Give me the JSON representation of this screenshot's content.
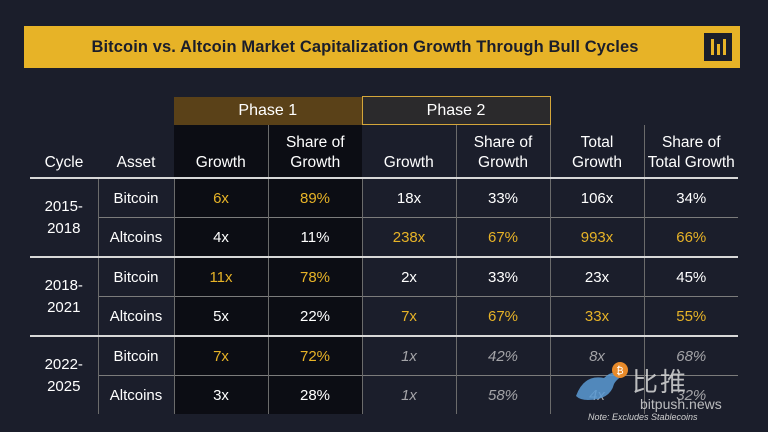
{
  "title": "Bitcoin vs. Altcoin Market Capitalization Growth Through Bull Cycles",
  "logo_icon": "pantera-bars-icon",
  "colors": {
    "accent": "#e7b327",
    "background": "#1b1e2b",
    "muted": "#a4a4a8"
  },
  "headers": {
    "phase1": "Phase 1",
    "phase2": "Phase 2",
    "cycle": "Cycle",
    "asset": "Asset",
    "growth": "Growth",
    "share_of_growth_l1": "Share of",
    "share_of_growth_l2": "Growth",
    "total_growth_l1": "Total",
    "total_growth_l2": "Growth",
    "share_total_l1": "Share of",
    "share_total_l2": "Total Growth"
  },
  "chart_data": {
    "type": "table",
    "title": "Bitcoin vs. Altcoin Market Capitalization Growth Through Bull Cycles",
    "columns": [
      "Cycle",
      "Asset",
      "Phase 1 Growth",
      "Phase 1 Share of Growth",
      "Phase 2 Growth",
      "Phase 2 Share of Growth",
      "Total Growth",
      "Share of Total Growth"
    ],
    "cycles": [
      {
        "cycle_l1": "2015-",
        "cycle_l2": "2018",
        "rows": [
          {
            "asset": "Bitcoin",
            "p1_growth": "6x",
            "p1_share": "89%",
            "p2_growth": "18x",
            "p2_share": "33%",
            "total_growth": "106x",
            "total_share": "34%"
          },
          {
            "asset": "Altcoins",
            "p1_growth": "4x",
            "p1_share": "11%",
            "p2_growth": "238x",
            "p2_share": "67%",
            "total_growth": "993x",
            "total_share": "66%"
          }
        ]
      },
      {
        "cycle_l1": "2018-",
        "cycle_l2": "2021",
        "rows": [
          {
            "asset": "Bitcoin",
            "p1_growth": "11x",
            "p1_share": "78%",
            "p2_growth": "2x",
            "p2_share": "33%",
            "total_growth": "23x",
            "total_share": "45%"
          },
          {
            "asset": "Altcoins",
            "p1_growth": "5x",
            "p1_share": "22%",
            "p2_growth": "7x",
            "p2_share": "67%",
            "total_growth": "33x",
            "total_share": "55%"
          }
        ]
      },
      {
        "cycle_l1": "2022-",
        "cycle_l2": "2025",
        "rows": [
          {
            "asset": "Bitcoin",
            "p1_growth": "7x",
            "p1_share": "72%",
            "p2_growth": "1x",
            "p2_share": "42%",
            "total_growth": "8x",
            "total_share": "68%"
          },
          {
            "asset": "Altcoins",
            "p1_growth": "3x",
            "p1_share": "28%",
            "p2_growth": "1x",
            "p2_share": "58%",
            "total_growth": "4x",
            "total_share": "32%"
          }
        ]
      }
    ],
    "highlighted_gold": "cells shown in accent color mark the larger value of each Bitcoin/Altcoins pair in cycles 2015-2018 and 2018-2021 and phase 1 of 2022-2025",
    "muted_italic": "2022-2025 phase 2 and total columns"
  },
  "note": "Note: Excludes Stablecoins",
  "watermark": {
    "text": "比推",
    "url": "bitpush.news",
    "icon": "bird-bitcoin-icon"
  }
}
